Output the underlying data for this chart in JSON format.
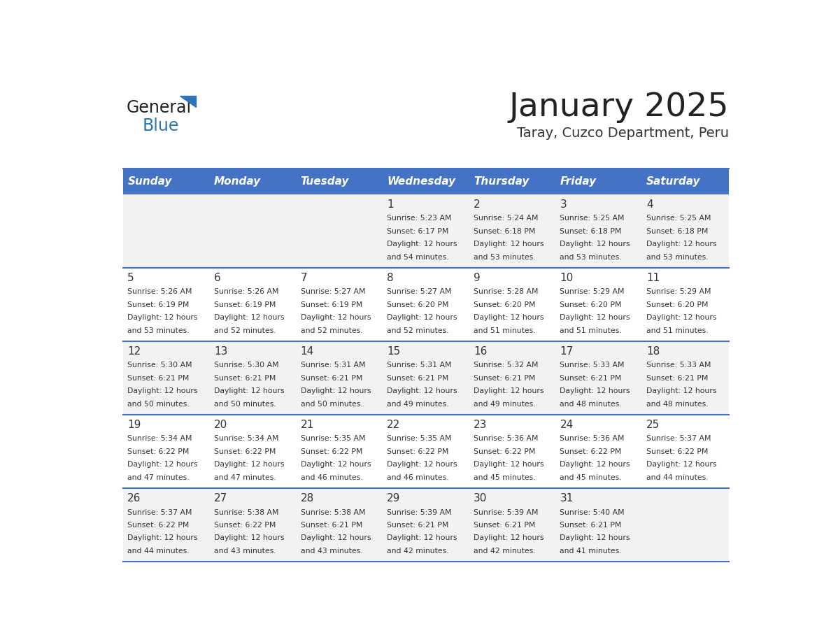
{
  "title": "January 2025",
  "subtitle": "Taray, Cuzco Department, Peru",
  "days_of_week": [
    "Sunday",
    "Monday",
    "Tuesday",
    "Wednesday",
    "Thursday",
    "Friday",
    "Saturday"
  ],
  "header_bg_color": "#4472C4",
  "header_text_color": "#FFFFFF",
  "row_bg_colors": [
    "#F2F2F2",
    "#FFFFFF"
  ],
  "separator_color": "#4472C4",
  "day_number_color": "#333333",
  "cell_text_color": "#333333",
  "title_color": "#222222",
  "subtitle_color": "#333333",
  "logo_general_color": "#222222",
  "logo_blue_color": "#2E75B6",
  "calendar_data": [
    [
      null,
      null,
      null,
      {
        "day": 1,
        "sunrise": "5:23 AM",
        "sunset": "6:17 PM",
        "daylight_hours": 12,
        "daylight_minutes": 54
      },
      {
        "day": 2,
        "sunrise": "5:24 AM",
        "sunset": "6:18 PM",
        "daylight_hours": 12,
        "daylight_minutes": 53
      },
      {
        "day": 3,
        "sunrise": "5:25 AM",
        "sunset": "6:18 PM",
        "daylight_hours": 12,
        "daylight_minutes": 53
      },
      {
        "day": 4,
        "sunrise": "5:25 AM",
        "sunset": "6:18 PM",
        "daylight_hours": 12,
        "daylight_minutes": 53
      }
    ],
    [
      {
        "day": 5,
        "sunrise": "5:26 AM",
        "sunset": "6:19 PM",
        "daylight_hours": 12,
        "daylight_minutes": 53
      },
      {
        "day": 6,
        "sunrise": "5:26 AM",
        "sunset": "6:19 PM",
        "daylight_hours": 12,
        "daylight_minutes": 52
      },
      {
        "day": 7,
        "sunrise": "5:27 AM",
        "sunset": "6:19 PM",
        "daylight_hours": 12,
        "daylight_minutes": 52
      },
      {
        "day": 8,
        "sunrise": "5:27 AM",
        "sunset": "6:20 PM",
        "daylight_hours": 12,
        "daylight_minutes": 52
      },
      {
        "day": 9,
        "sunrise": "5:28 AM",
        "sunset": "6:20 PM",
        "daylight_hours": 12,
        "daylight_minutes": 51
      },
      {
        "day": 10,
        "sunrise": "5:29 AM",
        "sunset": "6:20 PM",
        "daylight_hours": 12,
        "daylight_minutes": 51
      },
      {
        "day": 11,
        "sunrise": "5:29 AM",
        "sunset": "6:20 PM",
        "daylight_hours": 12,
        "daylight_minutes": 51
      }
    ],
    [
      {
        "day": 12,
        "sunrise": "5:30 AM",
        "sunset": "6:21 PM",
        "daylight_hours": 12,
        "daylight_minutes": 50
      },
      {
        "day": 13,
        "sunrise": "5:30 AM",
        "sunset": "6:21 PM",
        "daylight_hours": 12,
        "daylight_minutes": 50
      },
      {
        "day": 14,
        "sunrise": "5:31 AM",
        "sunset": "6:21 PM",
        "daylight_hours": 12,
        "daylight_minutes": 50
      },
      {
        "day": 15,
        "sunrise": "5:31 AM",
        "sunset": "6:21 PM",
        "daylight_hours": 12,
        "daylight_minutes": 49
      },
      {
        "day": 16,
        "sunrise": "5:32 AM",
        "sunset": "6:21 PM",
        "daylight_hours": 12,
        "daylight_minutes": 49
      },
      {
        "day": 17,
        "sunrise": "5:33 AM",
        "sunset": "6:21 PM",
        "daylight_hours": 12,
        "daylight_minutes": 48
      },
      {
        "day": 18,
        "sunrise": "5:33 AM",
        "sunset": "6:21 PM",
        "daylight_hours": 12,
        "daylight_minutes": 48
      }
    ],
    [
      {
        "day": 19,
        "sunrise": "5:34 AM",
        "sunset": "6:22 PM",
        "daylight_hours": 12,
        "daylight_minutes": 47
      },
      {
        "day": 20,
        "sunrise": "5:34 AM",
        "sunset": "6:22 PM",
        "daylight_hours": 12,
        "daylight_minutes": 47
      },
      {
        "day": 21,
        "sunrise": "5:35 AM",
        "sunset": "6:22 PM",
        "daylight_hours": 12,
        "daylight_minutes": 46
      },
      {
        "day": 22,
        "sunrise": "5:35 AM",
        "sunset": "6:22 PM",
        "daylight_hours": 12,
        "daylight_minutes": 46
      },
      {
        "day": 23,
        "sunrise": "5:36 AM",
        "sunset": "6:22 PM",
        "daylight_hours": 12,
        "daylight_minutes": 45
      },
      {
        "day": 24,
        "sunrise": "5:36 AM",
        "sunset": "6:22 PM",
        "daylight_hours": 12,
        "daylight_minutes": 45
      },
      {
        "day": 25,
        "sunrise": "5:37 AM",
        "sunset": "6:22 PM",
        "daylight_hours": 12,
        "daylight_minutes": 44
      }
    ],
    [
      {
        "day": 26,
        "sunrise": "5:37 AM",
        "sunset": "6:22 PM",
        "daylight_hours": 12,
        "daylight_minutes": 44
      },
      {
        "day": 27,
        "sunrise": "5:38 AM",
        "sunset": "6:22 PM",
        "daylight_hours": 12,
        "daylight_minutes": 43
      },
      {
        "day": 28,
        "sunrise": "5:38 AM",
        "sunset": "6:21 PM",
        "daylight_hours": 12,
        "daylight_minutes": 43
      },
      {
        "day": 29,
        "sunrise": "5:39 AM",
        "sunset": "6:21 PM",
        "daylight_hours": 12,
        "daylight_minutes": 42
      },
      {
        "day": 30,
        "sunrise": "5:39 AM",
        "sunset": "6:21 PM",
        "daylight_hours": 12,
        "daylight_minutes": 42
      },
      {
        "day": 31,
        "sunrise": "5:40 AM",
        "sunset": "6:21 PM",
        "daylight_hours": 12,
        "daylight_minutes": 41
      },
      null
    ]
  ],
  "figsize": [
    11.88,
    9.18
  ],
  "dpi": 100
}
